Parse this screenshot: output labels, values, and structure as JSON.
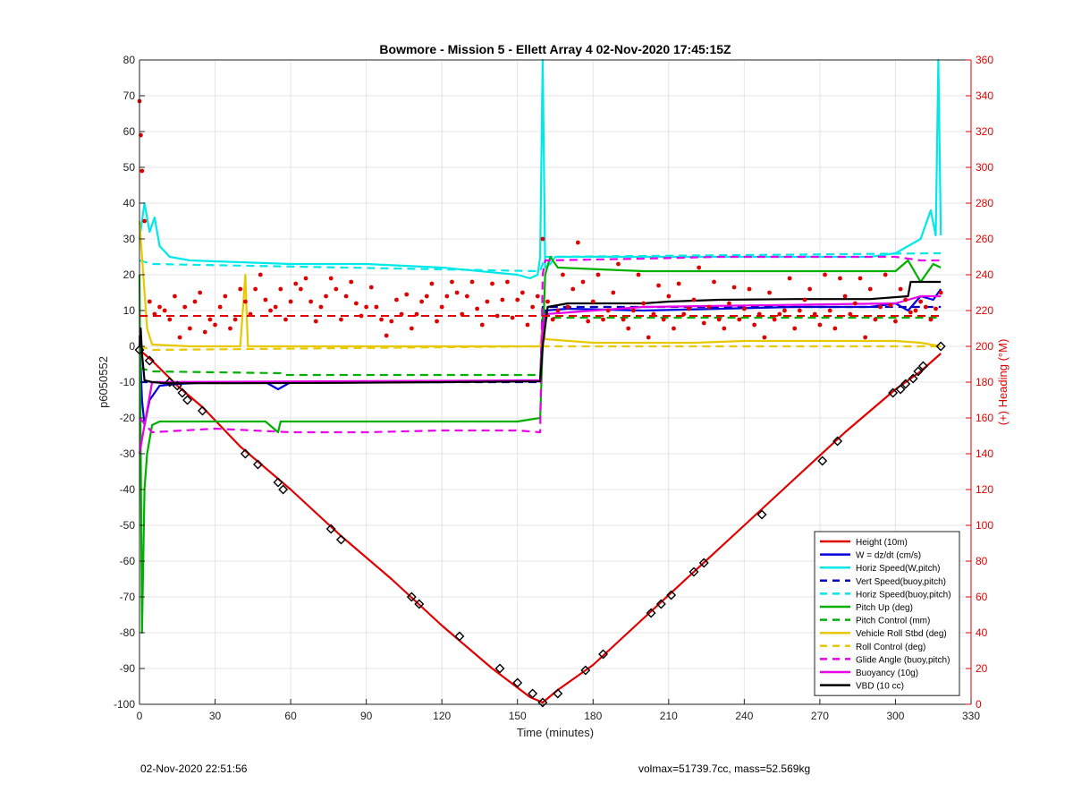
{
  "chart_data": {
    "type": "line",
    "title": "Bowmore - Mission 5 - Ellett Array 4 02-Nov-2020 17:45:15Z",
    "xlabel": "Time (minutes)",
    "ylabel": "p6050552",
    "y2label": "(+) Heading (°M)",
    "xlim": [
      0,
      330
    ],
    "ylim": [
      -100,
      80
    ],
    "y2lim": [
      0,
      360
    ],
    "xticks": [
      0,
      30,
      60,
      90,
      120,
      150,
      180,
      210,
      240,
      270,
      300,
      330
    ],
    "yticks": [
      -100,
      -90,
      -80,
      -70,
      -60,
      -50,
      -40,
      -30,
      -20,
      -10,
      0,
      10,
      20,
      30,
      40,
      50,
      60,
      70,
      80
    ],
    "y2ticks": [
      0,
      20,
      40,
      60,
      80,
      100,
      120,
      140,
      160,
      180,
      200,
      220,
      240,
      260,
      280,
      300,
      320,
      340,
      360
    ],
    "grid": true,
    "legend_position": "bottom-right",
    "series": [
      {
        "name": "Height (10m)",
        "color": "#e00000",
        "style": "solid",
        "x": [
          0,
          5,
          15,
          25,
          40,
          60,
          80,
          100,
          120,
          140,
          155,
          160,
          166,
          180,
          200,
          220,
          240,
          260,
          280,
          300,
          310,
          318
        ],
        "y": [
          -1,
          -4,
          -11,
          -17,
          -28,
          -40,
          -53,
          -65,
          -78,
          -90,
          -98,
          -99.5,
          -96,
          -89,
          -76,
          -63,
          -50,
          -37,
          -24,
          -12,
          -7,
          -2
        ]
      },
      {
        "name": "W = dz/dt (cm/s)",
        "color": "#0000e0",
        "style": "solid",
        "x": [
          0,
          1,
          2,
          4,
          8,
          15,
          30,
          50,
          55,
          60,
          90,
          120,
          150,
          159,
          160,
          161,
          170,
          200,
          230,
          260,
          290,
          300,
          305,
          310,
          315,
          318
        ],
        "y": [
          3,
          -15,
          -22,
          -15,
          -11,
          -10.5,
          -10,
          -10,
          -12,
          -10,
          -10,
          -10,
          -9.5,
          -9.5,
          0,
          10,
          10.5,
          10,
          10.5,
          11,
          11,
          12,
          10,
          14,
          13,
          16
        ]
      },
      {
        "name": "Horiz Speed(W,pitch)",
        "color": "#00e8e8",
        "style": "solid",
        "x": [
          0,
          2,
          4,
          6,
          8,
          12,
          20,
          40,
          60,
          90,
          120,
          150,
          155,
          158,
          159,
          160,
          161,
          163,
          165,
          170,
          200,
          230,
          260,
          290,
          300,
          305,
          310,
          314,
          316,
          317,
          318
        ],
        "y": [
          30,
          40,
          32,
          36,
          28,
          25,
          24,
          23.5,
          23,
          23,
          22,
          20,
          19,
          20,
          25,
          80,
          22,
          23,
          25,
          25,
          25,
          25,
          25,
          25,
          26,
          28,
          30,
          38,
          31,
          80,
          31
        ]
      },
      {
        "name": "Vert Speed(buoy,pitch)",
        "color": "#0000c0",
        "style": "dashed",
        "x": [
          0,
          5,
          159,
          160,
          318
        ],
        "y": [
          -10,
          -10,
          -10,
          11,
          11
        ]
      },
      {
        "name": "Horiz Speed(buoy,pitch)",
        "color": "#00e8e8",
        "style": "dashed",
        "x": [
          0,
          5,
          159,
          161,
          318
        ],
        "y": [
          24,
          23,
          21,
          25,
          26
        ]
      },
      {
        "name": "Pitch Up (deg)",
        "color": "#00b000",
        "style": "solid",
        "x": [
          0,
          1,
          2,
          3,
          5,
          8,
          40,
          50,
          55,
          56,
          60,
          90,
          120,
          150,
          159,
          160,
          161,
          163,
          166,
          200,
          230,
          260,
          290,
          300,
          305,
          310,
          315,
          318
        ],
        "y": [
          20,
          -80,
          -40,
          -30,
          -22,
          -21,
          -21,
          -21,
          -24,
          -21,
          -21,
          -21,
          -21,
          -21,
          -20,
          0,
          20,
          25,
          22,
          21,
          21,
          21,
          21,
          21,
          24,
          18,
          23,
          22
        ]
      },
      {
        "name": "Pitch Control (mm)",
        "color": "#00b000",
        "style": "dashed",
        "x": [
          0,
          5,
          56,
          57,
          159,
          160,
          318
        ],
        "y": [
          -6,
          -7,
          -7.5,
          -8,
          -8,
          8,
          8
        ]
      },
      {
        "name": "Vehicle Roll Stbd (deg)",
        "color": "#e8c800",
        "style": "solid",
        "x": [
          0,
          3,
          5,
          20,
          40,
          42,
          43,
          44,
          60,
          80,
          100,
          120,
          150,
          159,
          160,
          161,
          180,
          200,
          220,
          240,
          260,
          290,
          300,
          310,
          318
        ],
        "y": [
          35,
          5,
          0.5,
          0,
          0,
          20,
          0,
          0,
          0,
          0,
          0,
          0,
          0,
          0,
          5,
          2,
          1,
          1,
          1,
          1.5,
          1.5,
          1.5,
          1.5,
          1,
          0
        ]
      },
      {
        "name": "Roll Control (deg)",
        "color": "#e8c800",
        "style": "dashed",
        "x": [
          0,
          5,
          160,
          318
        ],
        "y": [
          0,
          -1,
          0,
          0
        ]
      },
      {
        "name": "Glide Angle (buoy,pitch)",
        "color": "#e800e8",
        "style": "dashed",
        "x": [
          0,
          5,
          30,
          60,
          90,
          120,
          150,
          159,
          160,
          161,
          200,
          230,
          260,
          290,
          300,
          310,
          318
        ],
        "y": [
          -20,
          -24,
          -23,
          -24,
          -24,
          -23.5,
          -23.5,
          -24,
          20,
          24,
          24.5,
          25,
          25,
          25,
          25,
          24,
          24
        ]
      },
      {
        "name": "Buoyancy (10g)",
        "color": "#e800e8",
        "style": "solid",
        "x": [
          0,
          5,
          159,
          160,
          161,
          200,
          300,
          305,
          310,
          318
        ],
        "y": [
          -30,
          -10,
          -9.5,
          5,
          9,
          11,
          12,
          13,
          14,
          14
        ]
      },
      {
        "name": "VBD (10 cc)",
        "color": "#000000",
        "style": "solid",
        "x": [
          0,
          0.5,
          1,
          2,
          5,
          10,
          40,
          80,
          120,
          159,
          160,
          162,
          170,
          200,
          210,
          230,
          260,
          290,
          305,
          306,
          318
        ],
        "y": [
          0,
          5,
          -2,
          -9.5,
          -10,
          -10.3,
          -10.3,
          -10.2,
          -10,
          -9.8,
          0,
          11,
          12,
          12,
          12.5,
          13,
          13.2,
          13.2,
          14,
          18,
          18
        ]
      }
    ],
    "height_markers": {
      "name": "Height (10m)",
      "marker": "diamond",
      "x": [
        0,
        4,
        12,
        15,
        17,
        19,
        25,
        42,
        47,
        55,
        57,
        76,
        80,
        108,
        111,
        127,
        143,
        150,
        156,
        160,
        166,
        177,
        184,
        203,
        207,
        211,
        220,
        224,
        247,
        271,
        277,
        299,
        302,
        304,
        307,
        309,
        311,
        318
      ],
      "y": [
        -1,
        -4,
        -10,
        -11,
        -13,
        -15,
        -18,
        -30,
        -33,
        -38,
        -40,
        -51,
        -54,
        -70,
        -72,
        -81,
        -90,
        -94,
        -97,
        -99.5,
        -97,
        -90.5,
        -86,
        -74.5,
        -72,
        -69.5,
        -63,
        -60.5,
        -47,
        -32,
        -26.5,
        -13,
        -12,
        -10.5,
        -9,
        -7,
        -5.5,
        0
      ]
    },
    "heading": {
      "name": "(+) Heading (°M)",
      "color": "#e00000",
      "axis": "right",
      "marker": "dot",
      "mean_dashed": 217,
      "x": [
        0,
        0.5,
        1,
        2,
        4,
        6,
        8,
        10,
        12,
        14,
        16,
        18,
        20,
        22,
        24,
        26,
        28,
        30,
        32,
        34,
        36,
        38,
        40,
        42,
        44,
        46,
        48,
        50,
        52,
        54,
        56,
        58,
        60,
        62,
        64,
        66,
        68,
        70,
        72,
        74,
        76,
        78,
        80,
        82,
        84,
        86,
        88,
        90,
        92,
        94,
        96,
        98,
        100,
        102,
        104,
        106,
        108,
        110,
        112,
        114,
        116,
        118,
        120,
        122,
        124,
        126,
        128,
        130,
        132,
        134,
        136,
        138,
        140,
        142,
        144,
        146,
        148,
        150,
        152,
        154,
        156,
        158,
        160,
        162,
        164,
        166,
        168,
        170,
        172,
        174,
        176,
        178,
        180,
        182,
        184,
        186,
        188,
        190,
        192,
        194,
        196,
        198,
        200,
        202,
        204,
        206,
        208,
        210,
        212,
        214,
        216,
        218,
        220,
        222,
        224,
        226,
        228,
        230,
        232,
        234,
        236,
        238,
        240,
        242,
        244,
        246,
        248,
        250,
        252,
        254,
        256,
        258,
        260,
        262,
        264,
        266,
        268,
        270,
        272,
        274,
        276,
        278,
        280,
        282,
        284,
        286,
        288,
        290,
        292,
        294,
        296,
        298,
        300,
        302,
        304,
        306,
        308,
        310,
        312,
        314,
        316,
        318
      ],
      "y": [
        337,
        318,
        298,
        270,
        225,
        218,
        222,
        220,
        215,
        228,
        205,
        222,
        210,
        225,
        230,
        208,
        215,
        212,
        222,
        228,
        210,
        215,
        232,
        225,
        218,
        232,
        240,
        226,
        220,
        222,
        232,
        215,
        225,
        235,
        232,
        238,
        225,
        214,
        222,
        228,
        238,
        232,
        215,
        228,
        236,
        224,
        217,
        222,
        233,
        222,
        215,
        206,
        214,
        226,
        218,
        229,
        210,
        218,
        225,
        228,
        235,
        214,
        222,
        228,
        236,
        230,
        218,
        228,
        236,
        221,
        212,
        225,
        235,
        217,
        226,
        236,
        216,
        226,
        230,
        212,
        222,
        228,
        260,
        225,
        215,
        220,
        240,
        222,
        232,
        258,
        236,
        214,
        225,
        240,
        215,
        220,
        230,
        246,
        215,
        210,
        220,
        240,
        224,
        205,
        218,
        234,
        215,
        228,
        210,
        235,
        218,
        221,
        226,
        244,
        213,
        222,
        236,
        215,
        210,
        224,
        233,
        215,
        221,
        232,
        212,
        218,
        205,
        230,
        215,
        218,
        220,
        238,
        210,
        220,
        226,
        232,
        218,
        212,
        240,
        220,
        210,
        238,
        228,
        218,
        224,
        238,
        205,
        232,
        215,
        222,
        240,
        223,
        214,
        232,
        226,
        219,
        220,
        225,
        222,
        215,
        221,
        230
      ]
    },
    "footer_left": "02-Nov-2020 22:51:56",
    "footer_right": "volmax=51739.7cc, mass=52.569kg"
  }
}
